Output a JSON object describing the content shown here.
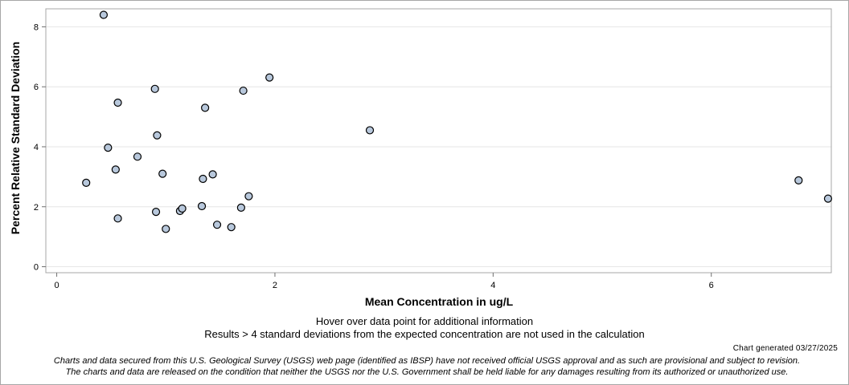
{
  "chart_data": {
    "type": "scatter",
    "xlabel": "Mean Concentration in ug/L",
    "ylabel": "Percent Relative Standard Deviation",
    "xlim": [
      -0.1,
      7.1
    ],
    "ylim": [
      -0.2,
      8.6
    ],
    "xticks": [
      0,
      2,
      4,
      6
    ],
    "yticks": [
      0,
      2,
      4,
      6,
      8
    ],
    "grid": true,
    "marker_fill": "#b8c8dc",
    "marker_stroke": "#000000",
    "points": [
      {
        "x": 0.43,
        "y": 8.4
      },
      {
        "x": 0.27,
        "y": 2.8
      },
      {
        "x": 0.47,
        "y": 3.97
      },
      {
        "x": 0.54,
        "y": 3.24
      },
      {
        "x": 0.56,
        "y": 5.47
      },
      {
        "x": 0.56,
        "y": 1.61
      },
      {
        "x": 0.74,
        "y": 3.67
      },
      {
        "x": 0.9,
        "y": 5.93
      },
      {
        "x": 0.91,
        "y": 1.83
      },
      {
        "x": 0.92,
        "y": 4.38
      },
      {
        "x": 0.97,
        "y": 3.1
      },
      {
        "x": 1.0,
        "y": 1.26
      },
      {
        "x": 1.13,
        "y": 1.86
      },
      {
        "x": 1.15,
        "y": 1.94
      },
      {
        "x": 1.33,
        "y": 2.02
      },
      {
        "x": 1.34,
        "y": 2.93
      },
      {
        "x": 1.36,
        "y": 5.3
      },
      {
        "x": 1.43,
        "y": 3.08
      },
      {
        "x": 1.47,
        "y": 1.4
      },
      {
        "x": 1.6,
        "y": 1.32
      },
      {
        "x": 1.69,
        "y": 1.97
      },
      {
        "x": 1.71,
        "y": 5.87
      },
      {
        "x": 1.76,
        "y": 2.35
      },
      {
        "x": 1.95,
        "y": 6.31
      },
      {
        "x": 2.87,
        "y": 4.55
      },
      {
        "x": 6.8,
        "y": 2.88
      },
      {
        "x": 7.07,
        "y": 2.27
      }
    ]
  },
  "notes": {
    "hover": "Hover over data point for additional information",
    "results": "Results > 4 standard deviations from the expected concentration are not used in the calculation"
  },
  "generated": "Chart generated 03/27/2025",
  "disclaimer": {
    "line1": "Charts and data secured from this U.S. Geological Survey (USGS) web page (identified as IBSP) have not received official USGS approval and as such are provisional and subject to revision.",
    "line2": "The charts and data are released on the condition that neither the USGS nor the U.S. Government shall be held liable for any damages resulting from its authorized or unauthorized use."
  }
}
